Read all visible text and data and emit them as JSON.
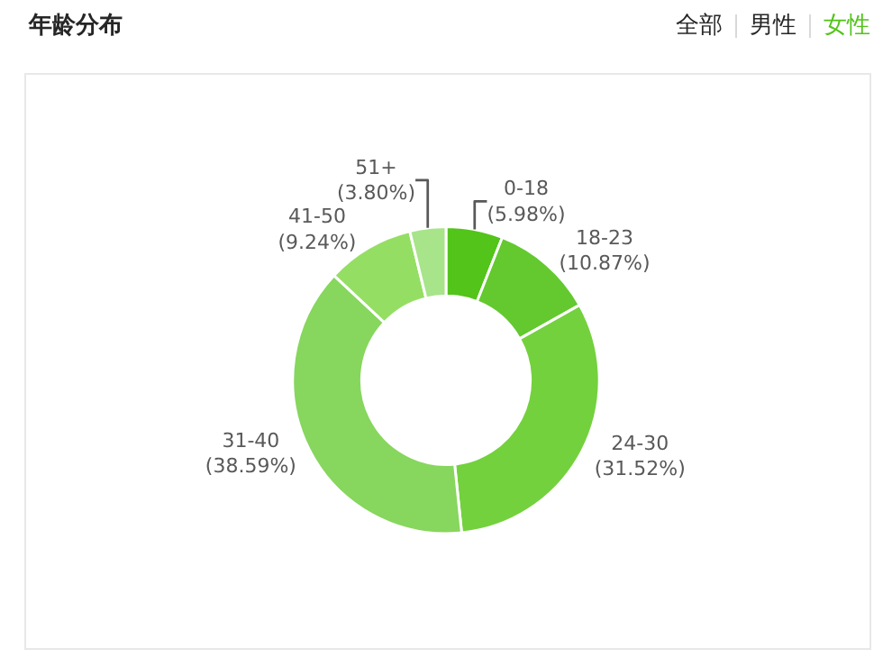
{
  "chart_data": {
    "type": "donut",
    "title": "年龄分布",
    "categories": [
      "0-18",
      "18-23",
      "24-30",
      "31-40",
      "41-50",
      "51+"
    ],
    "values": [
      5.98,
      10.87,
      31.52,
      38.59,
      9.24,
      3.8
    ],
    "value_labels": [
      "(5.98%)",
      "(10.87%)",
      "(31.52%)",
      "(38.59%)",
      "(9.24%)",
      "(3.80%)"
    ],
    "colors": [
      "#52c41a",
      "#63c92f",
      "#73d13d",
      "#87d65e",
      "#95de64",
      "#a8e48a"
    ],
    "annotations": [
      "全部",
      "男性",
      "女性"
    ],
    "legend": false
  }
}
